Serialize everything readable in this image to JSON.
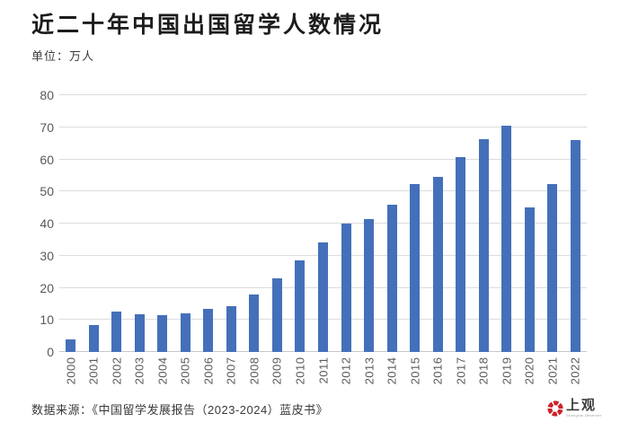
{
  "title": "近二十年中国出国留学人数情况",
  "unit_label": "单位：万人",
  "source_label": "数据来源：《中国留学发展报告（2023-2024）蓝皮书》",
  "logo": {
    "name": "上观",
    "tagline": "Shanghai Observer",
    "emblem_color": "#cc2229"
  },
  "colors": {
    "bar": "#4470ba",
    "gridline": "#dcdcdc",
    "axis_text": "#595959",
    "title_text": "#1c1c1c"
  },
  "chart_data": {
    "type": "bar",
    "title": "近二十年中国出国留学人数情况",
    "unit": "万人",
    "categories": [
      "2000",
      "2001",
      "2002",
      "2003",
      "2004",
      "2005",
      "2006",
      "2007",
      "2008",
      "2009",
      "2010",
      "2011",
      "2012",
      "2013",
      "2014",
      "2015",
      "2016",
      "2017",
      "2018",
      "2019",
      "2020",
      "2021",
      "2022"
    ],
    "values": [
      3.9,
      8.4,
      12.5,
      11.7,
      11.5,
      11.9,
      13.4,
      14.4,
      18.0,
      22.9,
      28.5,
      34.0,
      40.0,
      41.4,
      46.0,
      52.4,
      54.5,
      60.8,
      66.2,
      70.4,
      45.1,
      52.4,
      66.1
    ],
    "xlabel": "",
    "ylabel": "万人",
    "ylim": [
      0,
      80
    ],
    "yticks": [
      0,
      10,
      20,
      30,
      40,
      50,
      60,
      70,
      80
    ],
    "grid": true,
    "legend_position": "none",
    "bar_color": "#4470ba"
  }
}
